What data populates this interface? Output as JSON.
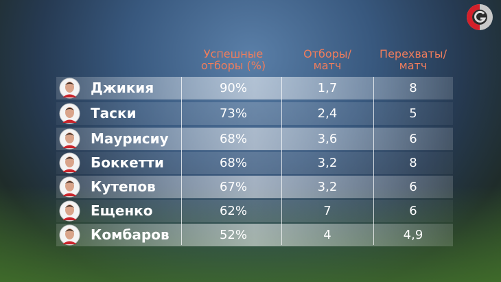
{
  "table": {
    "headers": [
      [
        "Успешные",
        "отборы (%)"
      ],
      [
        "Отборы/",
        "матч"
      ],
      [
        "Перехваты/",
        "матч"
      ]
    ],
    "rows": [
      [
        "Джикия",
        "90%",
        "1,7",
        "8"
      ],
      [
        "Таски",
        "73%",
        "2,4",
        "5"
      ],
      [
        "Маурисиу",
        "68%",
        "3,6",
        "6"
      ],
      [
        "Боккетти",
        "68%",
        "3,2",
        "8"
      ],
      [
        "Кутепов",
        "67%",
        "3,2",
        "6"
      ],
      [
        "Ещенко",
        "62%",
        "7",
        "6"
      ],
      [
        "Комбаров",
        "52%",
        "4",
        "4,9"
      ]
    ]
  }
}
